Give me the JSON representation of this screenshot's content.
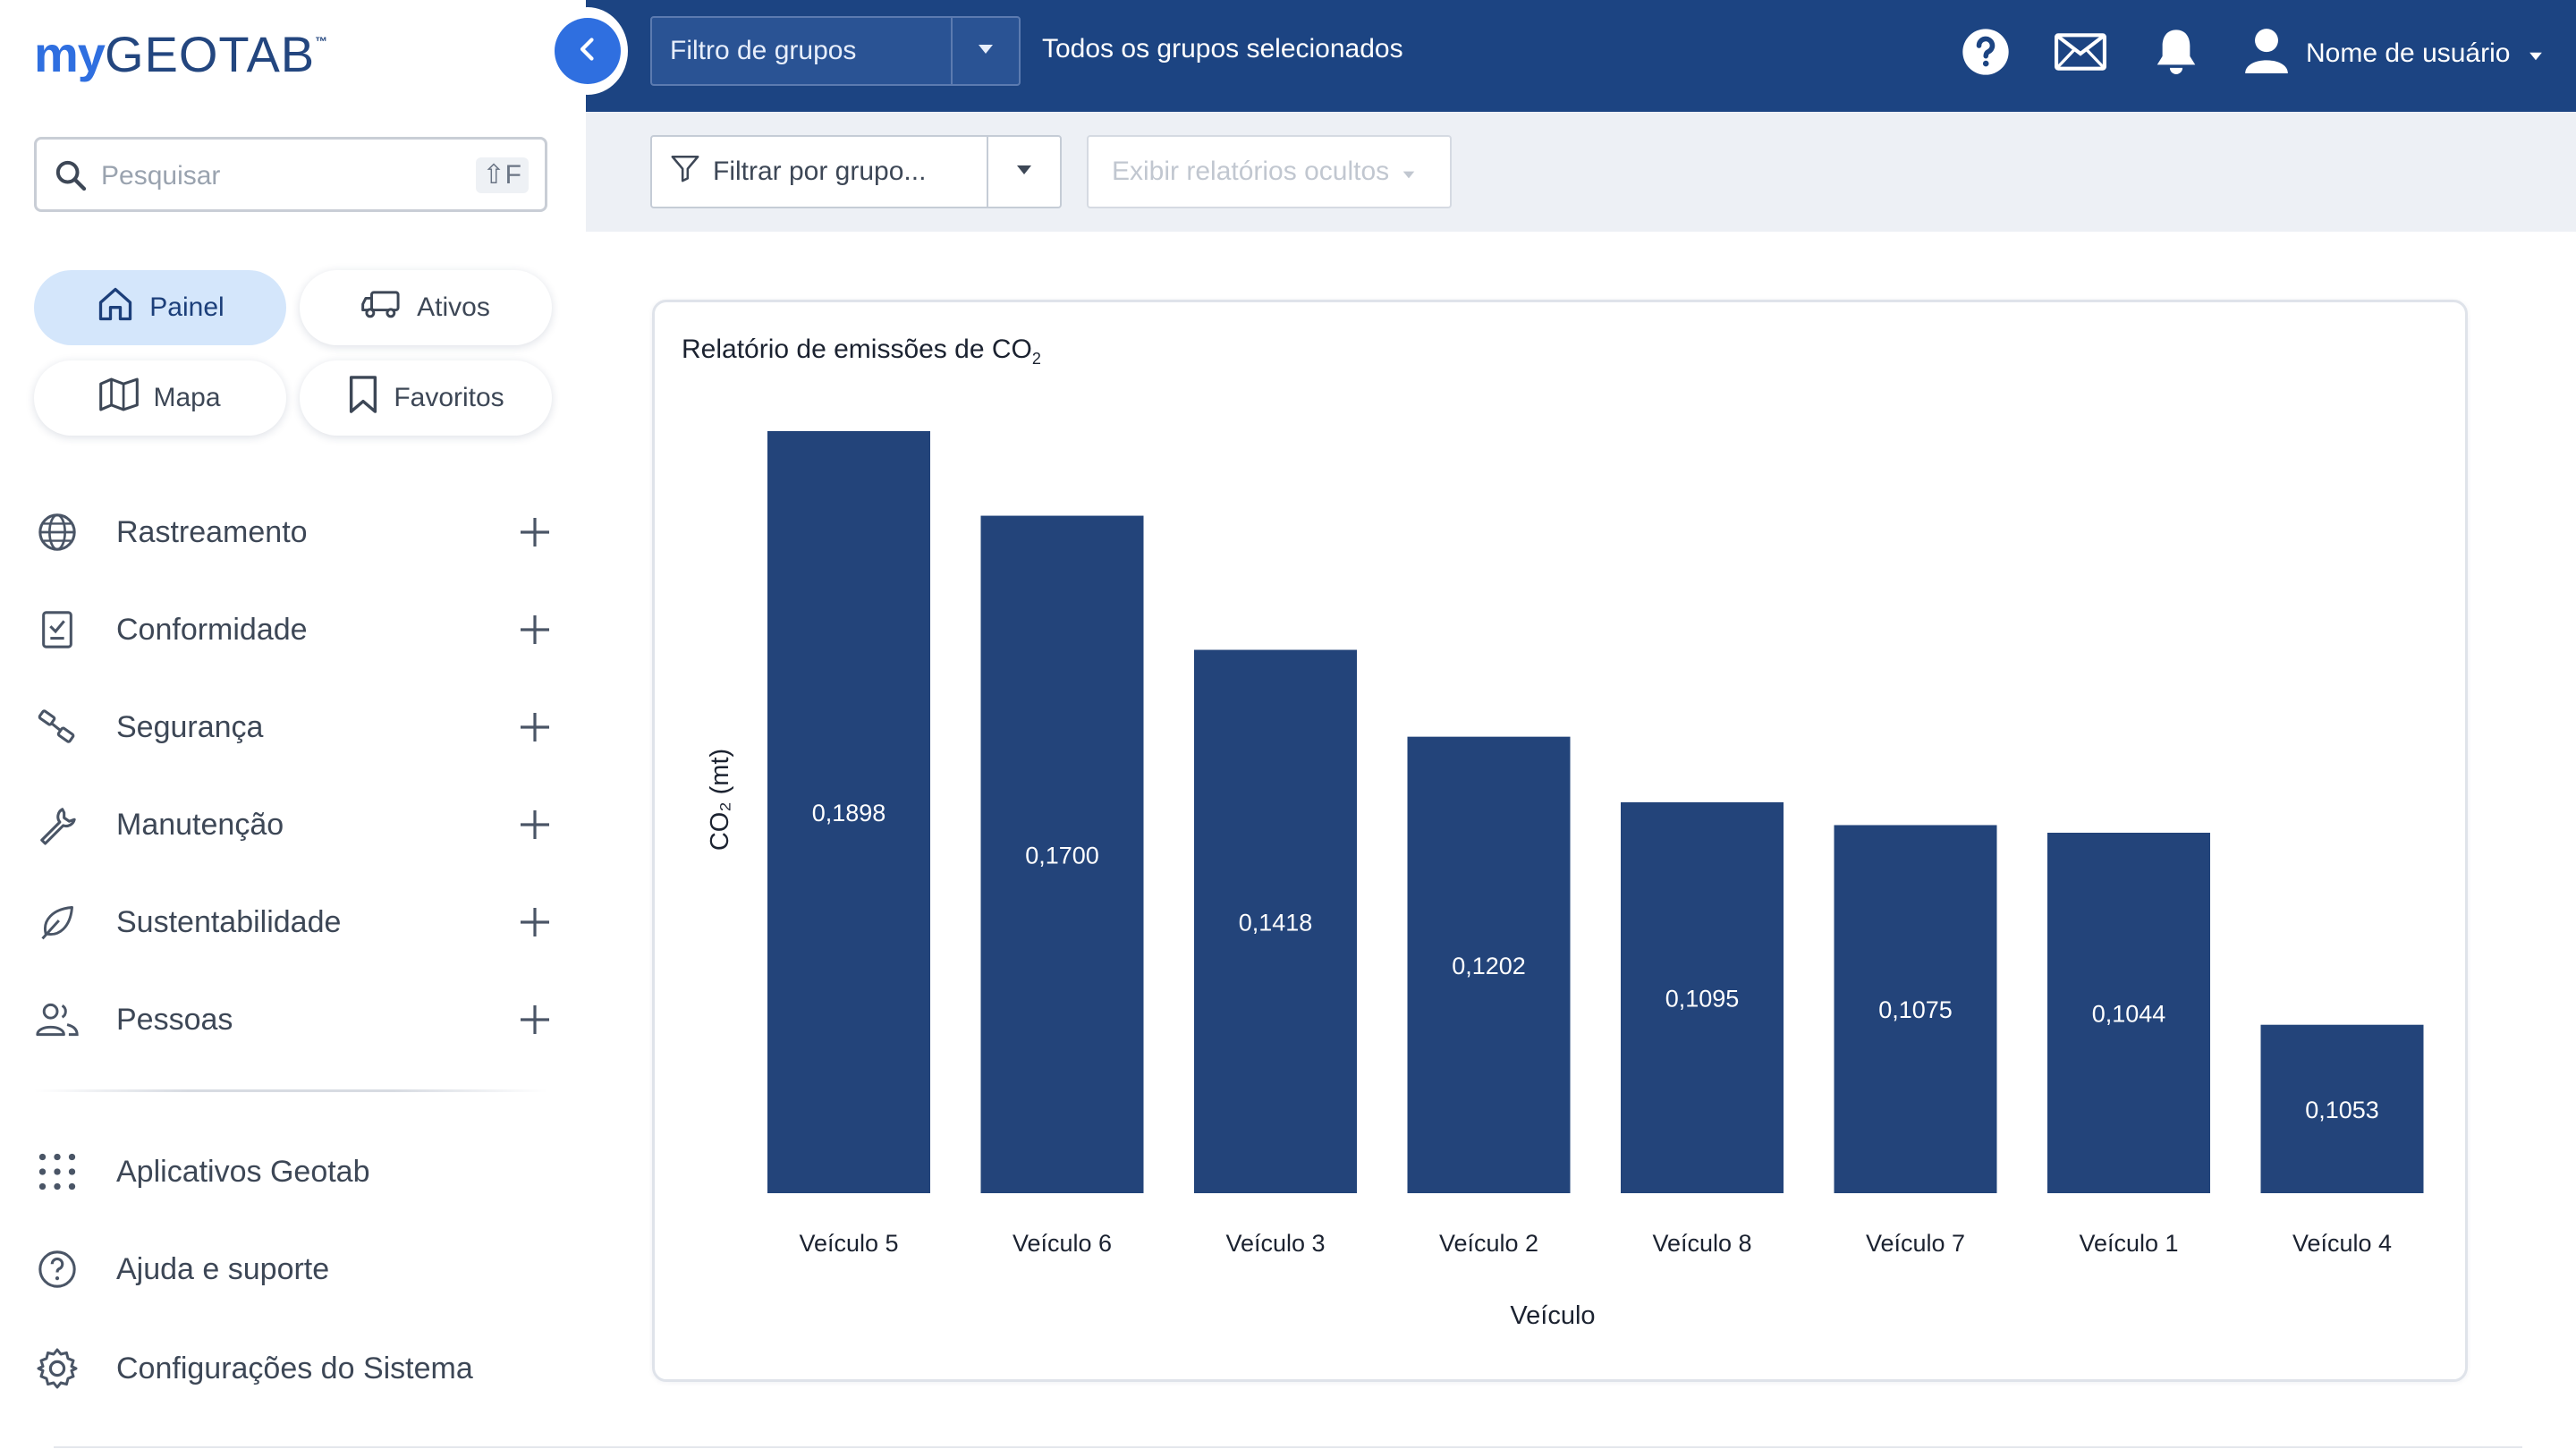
{
  "sidebar": {
    "logo_my": "my",
    "logo_geotab": "GEOTAB",
    "logo_tm": "™",
    "search": {
      "placeholder": "Pesquisar",
      "shortcut": "⇧F"
    },
    "quick_links": [
      {
        "label": "Painel",
        "icon": "home-icon",
        "active": true
      },
      {
        "label": "Ativos",
        "icon": "truck-icon",
        "active": false
      },
      {
        "label": "Mapa",
        "icon": "map-icon",
        "active": false
      },
      {
        "label": "Favoritos",
        "icon": "bookmark-icon",
        "active": false
      }
    ],
    "menu": [
      {
        "label": "Rastreamento",
        "icon": "globe-icon"
      },
      {
        "label": "Conformidade",
        "icon": "clipboard-icon"
      },
      {
        "label": "Segurança",
        "icon": "seatbelt-icon"
      },
      {
        "label": "Manutenção",
        "icon": "wrench-icon"
      },
      {
        "label": "Sustentabilidade",
        "icon": "leaf-icon"
      },
      {
        "label": "Pessoas",
        "icon": "people-icon"
      }
    ],
    "footer": [
      {
        "label": "Aplicativos Geotab",
        "icon": "grid-icon"
      },
      {
        "label": "Ajuda e suporte",
        "icon": "help-circle-icon"
      },
      {
        "label": "Configurações do Sistema",
        "icon": "gear-icon"
      }
    ]
  },
  "topbar": {
    "group_filter_label": "Filtro de grupos",
    "group_status": "Todos os grupos selecionados",
    "user_name": "Nome de usuário"
  },
  "filterbar": {
    "filter_placeholder": "Filtrar por grupo...",
    "hidden_reports_label": "Exibir relatórios ocultos"
  },
  "report": {
    "title": "Relatório de emissões de CO",
    "title_sub": "2"
  },
  "colors": {
    "bar": "#23447a",
    "topbar": "#1c4482",
    "accent": "#2f6fe0",
    "active_chip": "#d4e6fb"
  },
  "chart_data": {
    "type": "bar",
    "title": "Relatório de emissões de CO₂",
    "xlabel": "Veículo",
    "ylabel": "CO₂ (mt)",
    "categories": [
      "Veículo 5",
      "Veículo 6",
      "Veículo 3",
      "Veículo 2",
      "Veículo 8",
      "Veículo 7",
      "Veículo 1",
      "Veículo 4"
    ],
    "values": [
      0.1898,
      0.17,
      0.1418,
      0.1202,
      0.1095,
      0.1075,
      0.1044,
      0.1053
    ],
    "bar_heights": [
      1.0,
      0.889,
      0.713,
      0.599,
      0.513,
      0.483,
      0.473,
      0.221
    ],
    "value_labels": [
      "0,1898",
      "0,1700",
      "0,1418",
      "0,1202",
      "0,1095",
      "0,1075",
      "0,1044",
      "0,1053"
    ],
    "grid": false,
    "legend": "none"
  }
}
